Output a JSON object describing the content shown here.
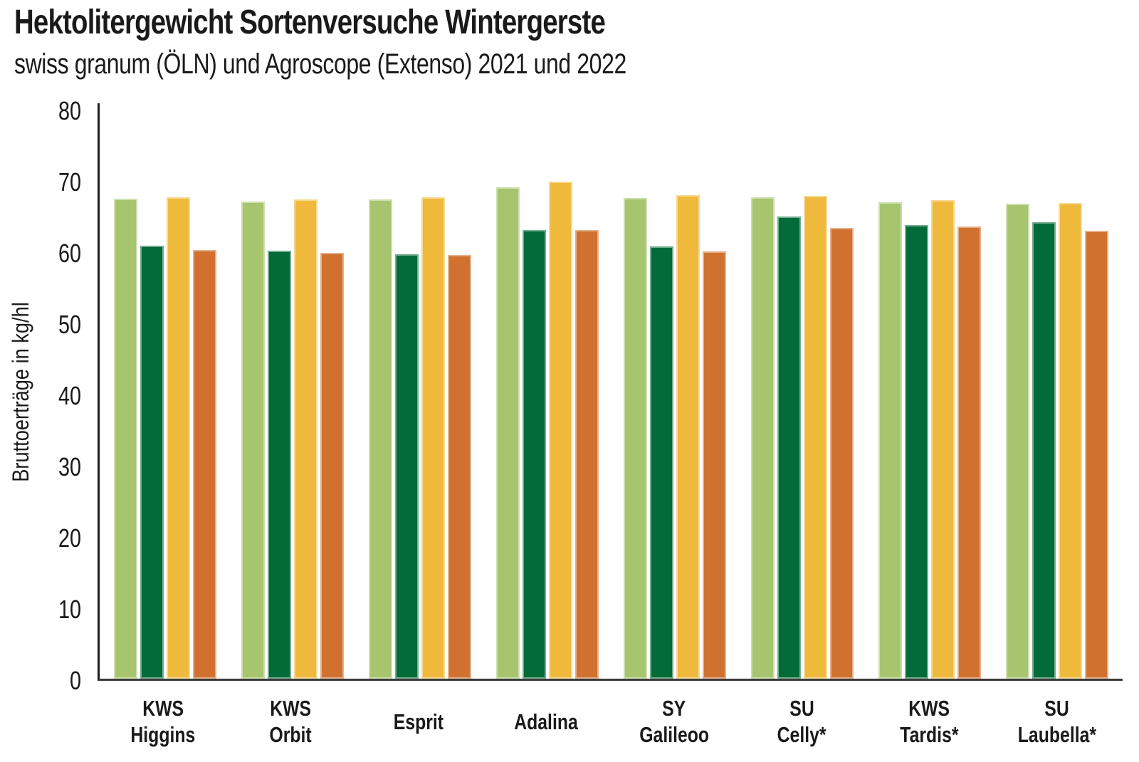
{
  "title": "Hektolitergewicht Sortenversuche Wintergerste",
  "subtitle": "swiss granum (ÖLN) und Agroscope (Extenso) 2021 und 2022",
  "chart_data": {
    "type": "bar",
    "title": "Hektolitergewicht Sortenversuche Wintergerste",
    "subtitle": "swiss granum (ÖLN) und Agroscope (Extenso) 2021 und 2022",
    "xlabel": "",
    "ylabel": "Bruttoerträge in kg/hl",
    "ylim": [
      0,
      80
    ],
    "yticks": [
      0,
      10,
      20,
      30,
      40,
      50,
      60,
      70,
      80
    ],
    "grid": false,
    "legend": "none",
    "categories": [
      "KWS Higgins",
      "KWS Orbit",
      "Esprit",
      "Adalina",
      "SY Galileoo",
      "SU Celly*",
      "KWS Tardis*",
      "SU Laubella*"
    ],
    "category_label_lines": [
      [
        "KWS",
        "Higgins"
      ],
      [
        "KWS",
        "Orbit"
      ],
      [
        "Esprit"
      ],
      [
        "Adalina"
      ],
      [
        "SY",
        "Galileoo"
      ],
      [
        "SU",
        "Celly*"
      ],
      [
        "KWS",
        "Tardis*"
      ],
      [
        "SU",
        "Laubella*"
      ]
    ],
    "series": [
      {
        "name": "light-green-bar",
        "color": "#a6c56e",
        "values": [
          67.4,
          67.0,
          67.3,
          69.0,
          67.5,
          67.6,
          66.9,
          66.7
        ]
      },
      {
        "name": "dark-green-bar",
        "color": "#026b38",
        "values": [
          60.8,
          60.1,
          59.6,
          63.0,
          60.7,
          64.9,
          63.7,
          64.1
        ]
      },
      {
        "name": "yellow-bar",
        "color": "#efba3c",
        "values": [
          67.6,
          67.3,
          67.6,
          69.8,
          67.9,
          67.8,
          67.2,
          66.8
        ]
      },
      {
        "name": "orange-bar",
        "color": "#d0712f",
        "values": [
          60.2,
          59.8,
          59.5,
          63.0,
          60.0,
          63.3,
          63.5,
          62.9
        ]
      }
    ]
  },
  "colors": {
    "text": "#1a1a1a",
    "axis": "#1d1d1b",
    "background": "#ffffff",
    "series": [
      "#a6c56e",
      "#026b38",
      "#efba3c",
      "#d0712f"
    ]
  }
}
